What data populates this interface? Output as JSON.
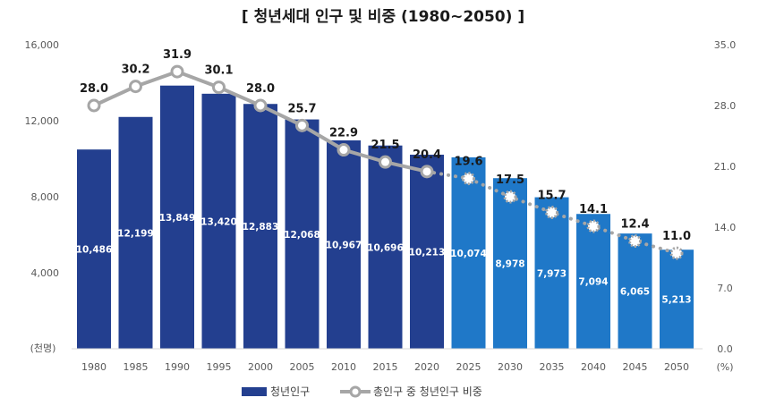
{
  "chart_data": {
    "type": "bar",
    "title": "[ 청년세대 인구 및 비중 (1980~2050) ]",
    "categories": [
      "1980",
      "1985",
      "1990",
      "1995",
      "2000",
      "2005",
      "2010",
      "2015",
      "2020",
      "2025",
      "2030",
      "2035",
      "2040",
      "2045",
      "2050"
    ],
    "series": [
      {
        "name": "청년인구",
        "type": "bar",
        "axis": "left",
        "values": [
          10486,
          12199,
          13849,
          13420,
          12883,
          12068,
          10967,
          10696,
          10213,
          10074,
          8978,
          7973,
          7094,
          6065,
          5213
        ],
        "labels": [
          "10,486",
          "12,199",
          "13,849",
          "13,420",
          "12,883",
          "12,068",
          "10,967",
          "10,696",
          "10,213",
          "10,074",
          "8,978",
          "7,973",
          "7,094",
          "6,065",
          "5,213"
        ]
      },
      {
        "name": "총인구 중 청년인구 비중",
        "type": "line",
        "axis": "right",
        "values": [
          28.0,
          30.2,
          31.9,
          30.1,
          28.0,
          25.7,
          22.9,
          21.5,
          20.4,
          19.6,
          17.5,
          15.7,
          14.1,
          12.4,
          11.0
        ],
        "labels": [
          "28.0",
          "30.2",
          "31.9",
          "30.1",
          "28.0",
          "25.7",
          "22.9",
          "21.5",
          "20.4",
          "19.6",
          "17.5",
          "15.7",
          "14.1",
          "12.4",
          "11.0"
        ]
      }
    ],
    "y_left": {
      "range": [
        0,
        16000
      ],
      "ticks": [
        "16,000",
        "12,000",
        "8,000",
        "4,000"
      ],
      "unit": "(천명)"
    },
    "y_right": {
      "range": [
        0,
        35
      ],
      "ticks": [
        "35.0",
        "28.0",
        "21.0",
        "14.0",
        "7.0",
        "0.0"
      ],
      "unit": "(%)"
    },
    "projection_start_index": 9,
    "grid": false,
    "legend_position": "bottom",
    "colors": {
      "bar_actual": "#233f8f",
      "bar_projected": "#1f78c8",
      "line": "#a6a6a6",
      "marker_fill": "#ffffff"
    }
  }
}
